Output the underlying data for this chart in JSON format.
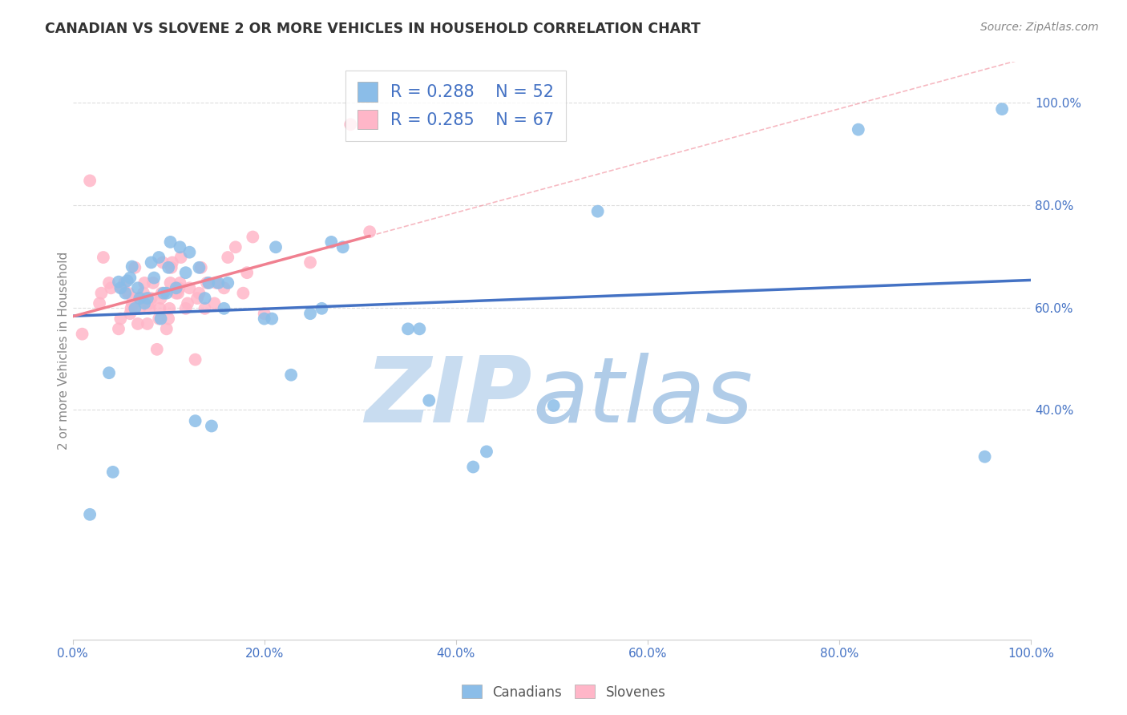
{
  "title": "CANADIAN VS SLOVENE 2 OR MORE VEHICLES IN HOUSEHOLD CORRELATION CHART",
  "source": "Source: ZipAtlas.com",
  "ylabel": "2 or more Vehicles in Household",
  "xlim": [
    0,
    1
  ],
  "ylim": [
    -0.05,
    1.08
  ],
  "right_ytick_vals": [
    0.4,
    0.6,
    0.8,
    1.0
  ],
  "right_yticklabels": [
    "40.0%",
    "60.0%",
    "80.0%",
    "100.0%"
  ],
  "xtick_vals": [
    0,
    0.2,
    0.4,
    0.6,
    0.8,
    1.0
  ],
  "xticklabels": [
    "0.0%",
    "20.0%",
    "40.0%",
    "60.0%",
    "80.0%",
    "100.0%"
  ],
  "canadian_color": "#8BBDE8",
  "slovene_color": "#FFB6C8",
  "canadian_line_color": "#4472C4",
  "slovene_line_color": "#F08090",
  "canadian_R": 0.288,
  "canadian_N": 52,
  "slovene_R": 0.285,
  "slovene_N": 67,
  "canadians_x": [
    0.018,
    0.038,
    0.042,
    0.048,
    0.05,
    0.055,
    0.057,
    0.06,
    0.062,
    0.065,
    0.068,
    0.07,
    0.075,
    0.078,
    0.082,
    0.085,
    0.09,
    0.092,
    0.095,
    0.098,
    0.1,
    0.102,
    0.108,
    0.112,
    0.118,
    0.122,
    0.128,
    0.132,
    0.138,
    0.142,
    0.145,
    0.152,
    0.158,
    0.162,
    0.2,
    0.208,
    0.212,
    0.228,
    0.248,
    0.26,
    0.27,
    0.282,
    0.35,
    0.362,
    0.372,
    0.418,
    0.432,
    0.502,
    0.548,
    0.82,
    0.952,
    0.97
  ],
  "canadians_y": [
    0.195,
    0.472,
    0.278,
    0.65,
    0.638,
    0.628,
    0.652,
    0.658,
    0.68,
    0.598,
    0.638,
    0.618,
    0.608,
    0.618,
    0.688,
    0.658,
    0.698,
    0.578,
    0.628,
    0.628,
    0.678,
    0.728,
    0.638,
    0.718,
    0.668,
    0.708,
    0.378,
    0.678,
    0.618,
    0.648,
    0.368,
    0.648,
    0.598,
    0.648,
    0.578,
    0.578,
    0.718,
    0.468,
    0.588,
    0.598,
    0.728,
    0.718,
    0.558,
    0.558,
    0.418,
    0.288,
    0.318,
    0.408,
    0.788,
    0.948,
    0.308,
    0.988
  ],
  "slovenes_x": [
    0.01,
    0.018,
    0.028,
    0.03,
    0.032,
    0.038,
    0.04,
    0.048,
    0.05,
    0.052,
    0.054,
    0.058,
    0.06,
    0.061,
    0.062,
    0.063,
    0.064,
    0.065,
    0.068,
    0.07,
    0.072,
    0.073,
    0.074,
    0.075,
    0.078,
    0.08,
    0.081,
    0.082,
    0.084,
    0.088,
    0.09,
    0.091,
    0.092,
    0.093,
    0.094,
    0.098,
    0.1,
    0.101,
    0.102,
    0.103,
    0.104,
    0.108,
    0.11,
    0.111,
    0.112,
    0.113,
    0.118,
    0.12,
    0.122,
    0.128,
    0.13,
    0.132,
    0.134,
    0.138,
    0.14,
    0.148,
    0.15,
    0.158,
    0.162,
    0.17,
    0.178,
    0.182,
    0.188,
    0.2,
    0.248,
    0.29,
    0.31
  ],
  "slovenes_y": [
    0.548,
    0.848,
    0.608,
    0.628,
    0.698,
    0.648,
    0.638,
    0.558,
    0.578,
    0.638,
    0.648,
    0.628,
    0.588,
    0.598,
    0.608,
    0.608,
    0.618,
    0.678,
    0.568,
    0.598,
    0.618,
    0.618,
    0.628,
    0.648,
    0.568,
    0.598,
    0.608,
    0.618,
    0.648,
    0.518,
    0.578,
    0.598,
    0.618,
    0.628,
    0.688,
    0.558,
    0.578,
    0.598,
    0.648,
    0.678,
    0.688,
    0.628,
    0.628,
    0.638,
    0.648,
    0.698,
    0.598,
    0.608,
    0.638,
    0.498,
    0.618,
    0.628,
    0.678,
    0.598,
    0.648,
    0.608,
    0.648,
    0.638,
    0.698,
    0.718,
    0.628,
    0.668,
    0.738,
    0.588,
    0.688,
    0.958,
    0.748
  ],
  "grid_color": "#DDDDDD",
  "title_color": "#333333",
  "source_color": "#888888",
  "ylabel_color": "#888888",
  "right_tick_color": "#4472C4",
  "x_tick_color": "#4472C4",
  "watermark_zip_color": "#C8DCF0",
  "watermark_atlas_color": "#B0CCE8"
}
